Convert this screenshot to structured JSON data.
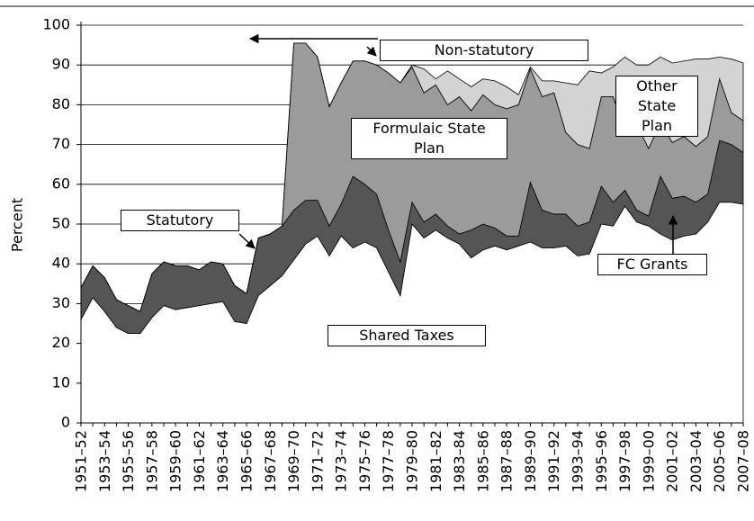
{
  "chart_data": {
    "type": "stacked_area",
    "y_label": "Percent",
    "categories": [
      "1951–52",
      null,
      "1953–54",
      null,
      "1955–56",
      null,
      "1957–58",
      null,
      "1959–60",
      null,
      "1961–62",
      null,
      "1963–64",
      null,
      "1965–66",
      null,
      "1967–68",
      null,
      "1969–70",
      null,
      "1971–72",
      null,
      "1973–74",
      null,
      "1975–76",
      null,
      "1977–78",
      null,
      "1979–80",
      null,
      "1981–82",
      null,
      "1983–84",
      null,
      "1985–86",
      null,
      "1987–88",
      null,
      "1989–90",
      null,
      "1991–92",
      null,
      "1993–94",
      null,
      "1995–96",
      null,
      "1997–98",
      null,
      "1999–00",
      null,
      "2001–02",
      null,
      "2003–04",
      null,
      "2005–06",
      null,
      "2007–08"
    ],
    "series": [
      {
        "name": "Shared Taxes",
        "color": "#ffffff",
        "values": [
          26,
          31.5,
          28,
          24,
          22.5,
          22.5,
          26.5,
          29.5,
          28.5,
          29,
          29.5,
          30,
          30.5,
          25.5,
          25,
          32,
          34.5,
          37,
          41,
          45,
          47,
          42,
          47,
          44,
          45.5,
          44,
          38,
          32,
          50,
          46.5,
          48.5,
          46.5,
          45,
          41.5,
          43.5,
          44.5,
          43.5,
          44.5,
          45.5,
          44,
          44,
          44.5,
          42,
          42.5,
          50,
          49.5,
          54.5,
          50.5,
          49.5,
          47.5,
          46,
          47,
          47.5,
          50.5,
          55.5,
          55.5,
          55
        ]
      },
      {
        "name": "FC Grants",
        "color": "#555555",
        "values": [
          8,
          8,
          8.5,
          7,
          7,
          5.5,
          11,
          11,
          11,
          10.5,
          9,
          10.5,
          9.5,
          9,
          7.5,
          14.5,
          13,
          12.5,
          12.5,
          11,
          9,
          7.5,
          8,
          18,
          14.5,
          13.5,
          10.5,
          8.5,
          5.5,
          4,
          4,
          3,
          2.5,
          7,
          6.5,
          4.5,
          3.5,
          2.5,
          15,
          9.5,
          8.5,
          8,
          7.5,
          8,
          9.5,
          6,
          4,
          3,
          2.5,
          14.5,
          10.5,
          10,
          8,
          7,
          15.5,
          14.5,
          13
        ]
      },
      {
        "name": "Formulaic State Plan",
        "color": "#9b9b9b",
        "values": [
          0,
          0,
          0,
          0,
          0,
          0,
          0,
          0,
          0,
          0,
          0,
          0,
          0,
          0,
          0,
          0,
          0,
          0,
          42,
          39.5,
          36,
          30,
          30.5,
          29,
          31,
          32.5,
          39.5,
          45,
          34,
          32.5,
          32.5,
          30.5,
          34.5,
          30,
          32.5,
          31,
          32,
          33,
          28.5,
          28.5,
          30.5,
          20.5,
          20.5,
          18.5,
          22.5,
          26.5,
          15,
          21.5,
          17,
          13.5,
          14,
          15,
          14,
          14.5,
          15.5,
          8,
          8
        ]
      },
      {
        "name": "Other State Plan",
        "color": "#d3d3d3",
        "values": [
          0,
          0,
          0,
          0,
          0,
          0,
          0,
          0,
          0,
          0,
          0,
          0,
          0,
          0,
          0,
          0,
          0,
          0,
          0,
          0,
          0,
          0,
          0,
          0,
          0,
          0,
          0,
          0,
          0.5,
          6,
          1.5,
          8.5,
          4.5,
          6,
          4,
          6,
          5.5,
          2.5,
          0.5,
          4,
          3,
          12.5,
          15,
          19.5,
          6,
          7.5,
          18.5,
          15,
          21,
          16.5,
          20,
          19,
          22,
          19.5,
          5.5,
          13.5,
          14.5
        ]
      }
    ],
    "annotations": [
      "Non-statutory",
      "Other State Plan",
      "Formulaic State Plan",
      "Statutory",
      "FC Grants",
      "Shared Taxes"
    ],
    "ylim": [
      0,
      100
    ],
    "yticks": [
      0,
      10,
      20,
      30,
      40,
      50,
      60,
      70,
      80,
      90,
      100
    ],
    "grid": true
  }
}
